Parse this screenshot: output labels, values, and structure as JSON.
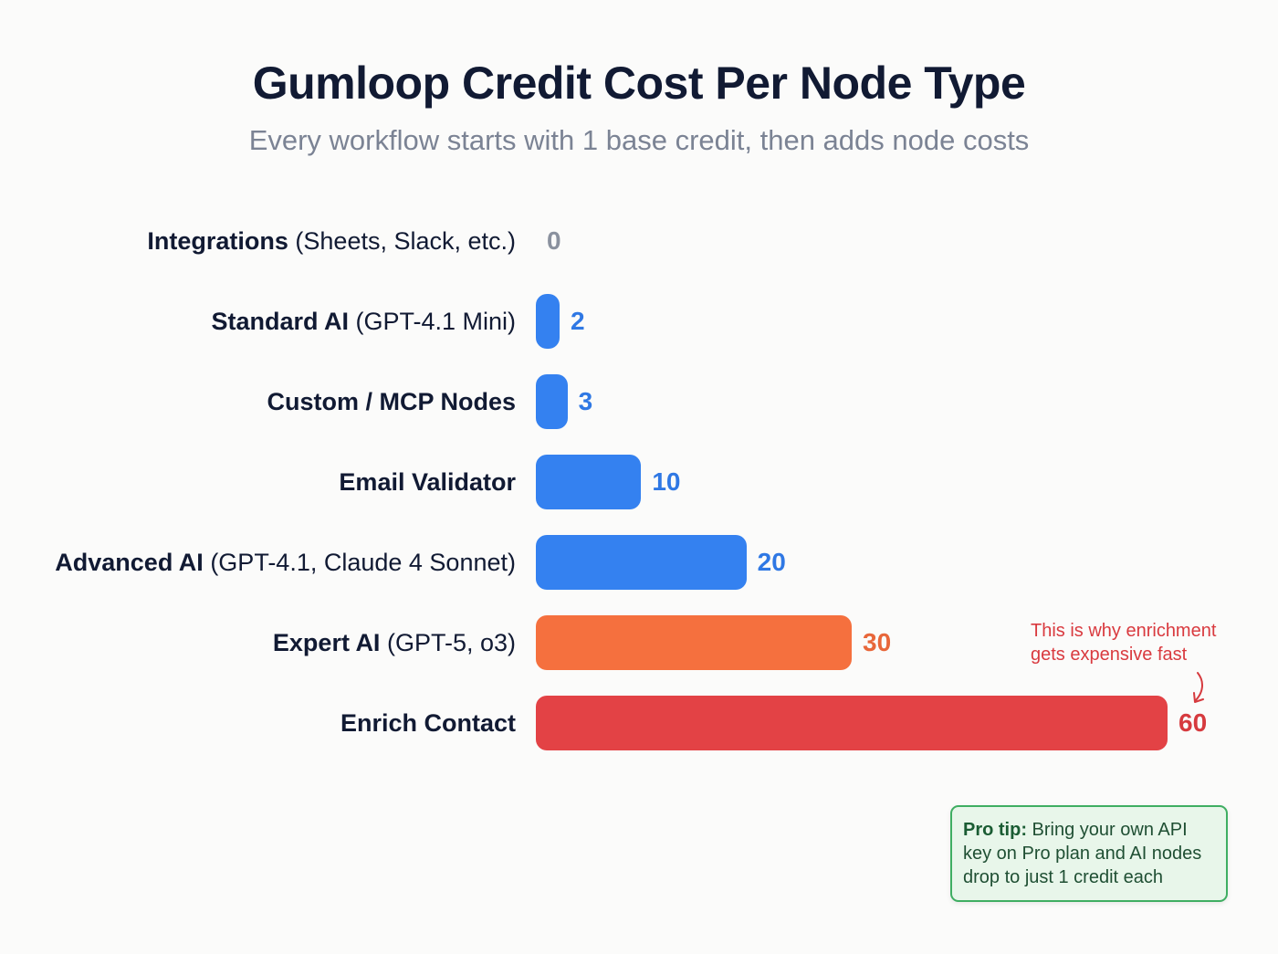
{
  "header": {
    "title": "Gumloop Credit Cost Per Node Type",
    "subtitle": "Every workflow starts with 1 base credit, then adds node costs"
  },
  "colors": {
    "blue": "#3481f0",
    "orange": "#f5703e",
    "red": "#e34245",
    "gray": "#8a919e",
    "blue_text": "#2f78e4",
    "orange_text": "#e8673a",
    "red_text": "#d63a3e"
  },
  "rows": [
    {
      "bold": "Integrations",
      "light": " (Sheets, Slack, etc.)",
      "value": "0"
    },
    {
      "bold": "Standard AI",
      "light": " (GPT-4.1 Mini)",
      "value": "2"
    },
    {
      "bold": "Custom / MCP Nodes",
      "light": "",
      "value": "3"
    },
    {
      "bold": "Email Validator",
      "light": "",
      "value": "10"
    },
    {
      "bold": "Advanced AI",
      "light": " (GPT-4.1, Claude 4 Sonnet)",
      "value": "20"
    },
    {
      "bold": "Expert AI",
      "light": " (GPT-5, o3)",
      "value": "30"
    },
    {
      "bold": "Enrich Contact",
      "light": "",
      "value": "60"
    }
  ],
  "annotation": {
    "line1": "This is why enrichment",
    "line2": "gets expensive fast"
  },
  "tip": {
    "label": "Pro tip:",
    "text": " Bring your own API key on Pro plan and AI nodes drop to just 1 credit each"
  },
  "chart_data": {
    "type": "bar",
    "orientation": "horizontal",
    "title": "Gumloop Credit Cost Per Node Type",
    "subtitle": "Every workflow starts with 1 base credit, then adds node costs",
    "categories": [
      "Integrations (Sheets, Slack, etc.)",
      "Standard AI (GPT-4.1 Mini)",
      "Custom / MCP Nodes",
      "Email Validator",
      "Advanced AI (GPT-4.1, Claude 4 Sonnet)",
      "Expert AI (GPT-5, o3)",
      "Enrich Contact"
    ],
    "values": [
      0,
      2,
      3,
      10,
      20,
      30,
      60
    ],
    "bar_colors": [
      "#8a919e",
      "#3481f0",
      "#3481f0",
      "#3481f0",
      "#3481f0",
      "#f5703e",
      "#e34245"
    ],
    "xlabel": "",
    "ylabel": "",
    "grid": false,
    "legend": "none",
    "annotations": [
      {
        "text": "This is why enrichment gets expensive fast",
        "target": "Enrich Contact"
      },
      {
        "text": "Pro tip: Bring your own API key on Pro plan and AI nodes drop to just 1 credit each"
      }
    ]
  }
}
